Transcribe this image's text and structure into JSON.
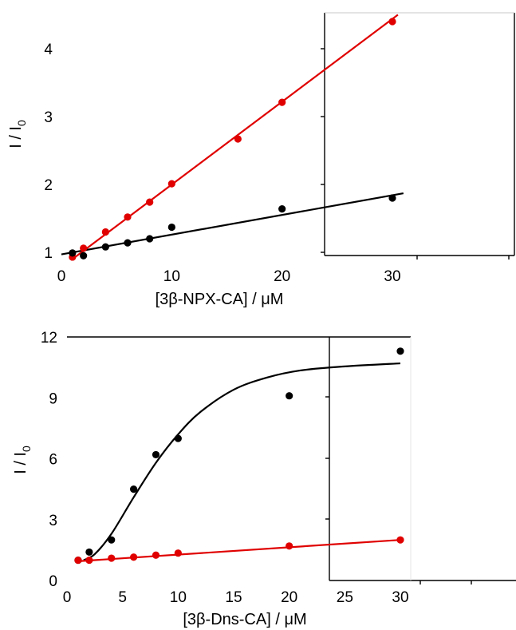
{
  "chart_data": [
    {
      "type": "scatter",
      "xlabel": "[3β-NPX-CA] / μM",
      "ylabel": "I / I",
      "ylabel_subscript": "0",
      "xlim": [
        0,
        30
      ],
      "ylim": [
        1,
        4.4
      ],
      "xticks": [
        0,
        10,
        20,
        30
      ],
      "yticks": [
        1,
        2,
        3,
        4
      ],
      "xtick_labels": [
        "0",
        "10",
        "20",
        "30"
      ],
      "ytick_labels": [
        "1",
        "2",
        "3",
        "4"
      ],
      "series": [
        {
          "color": "#e00000",
          "x": [
            1,
            2,
            4,
            6,
            8,
            10,
            16,
            20,
            30
          ],
          "y": [
            0.93,
            1.06,
            1.3,
            1.52,
            1.74,
            2.01,
            2.67,
            3.21,
            4.4
          ],
          "fit": {
            "x": [
              1,
              30.5
            ],
            "y": [
              0.9,
              4.5
            ]
          }
        },
        {
          "color": "#000000",
          "x": [
            1,
            2,
            4,
            6,
            8,
            10,
            20,
            30
          ],
          "y": [
            0.99,
            0.95,
            1.08,
            1.14,
            1.2,
            1.37,
            1.64,
            1.8
          ],
          "fit": {
            "x": [
              0,
              31
            ],
            "y": [
              0.97,
              1.87
            ]
          }
        }
      ]
    },
    {
      "type": "scatter",
      "xlabel": "[3β-Dns-CA] / μM",
      "ylabel": "I / I",
      "ylabel_subscript": "0",
      "xlim": [
        0,
        30
      ],
      "ylim": [
        0,
        12
      ],
      "xticks": [
        0,
        5,
        10,
        15,
        20,
        25,
        30
      ],
      "yticks": [
        0,
        3,
        6,
        9,
        12
      ],
      "xtick_labels": [
        "0",
        "5",
        "10",
        "15",
        "20",
        "25",
        "30"
      ],
      "ytick_labels": [
        "0",
        "3",
        "6",
        "9",
        "12"
      ],
      "series": [
        {
          "color": "#000000",
          "x": [
            1,
            2,
            4,
            6,
            8,
            10,
            20,
            30
          ],
          "y": [
            1.0,
            1.4,
            2.0,
            4.5,
            6.2,
            7.0,
            9.1,
            11.3
          ],
          "fit_curve": {
            "x": [
              1.5,
              2.5,
              4,
              6,
              8,
              10,
              12,
              15,
              18,
              21,
              25,
              30
            ],
            "y": [
              1.0,
              1.3,
              2.3,
              4.1,
              5.8,
              7.2,
              8.3,
              9.4,
              10.0,
              10.35,
              10.55,
              10.7
            ]
          }
        },
        {
          "color": "#e00000",
          "x": [
            1,
            2,
            4,
            6,
            8,
            10,
            20,
            30
          ],
          "y": [
            1.0,
            1.0,
            1.1,
            1.15,
            1.25,
            1.35,
            1.7,
            2.0
          ],
          "fit": {
            "x": [
              1,
              30
            ],
            "y": [
              0.95,
              2.0
            ]
          }
        }
      ]
    }
  ]
}
